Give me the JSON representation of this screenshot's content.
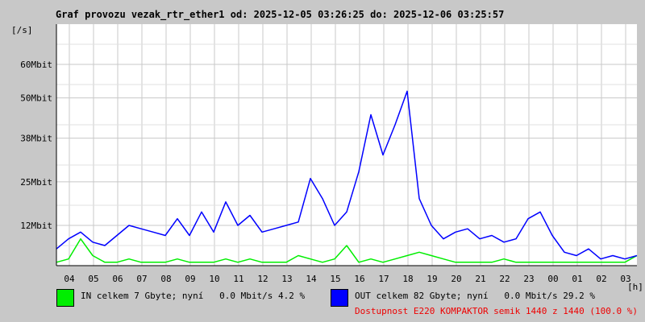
{
  "title": "Graf provozu vezak_rtr_ether1 od: 2025-12-05 03:26:25 do: 2025-12-06 03:25:57",
  "unit_label": "[/s]",
  "colors": {
    "background": "#c8c8c8",
    "plot": "#ffffff",
    "grid": "#c8c8c8",
    "in": "#00ee00",
    "out": "#0000ff",
    "availability": "#ee0000"
  },
  "legend": {
    "in": "IN celkem 7 Gbyte; nyní   0.0 Mbit/s 4.2 %",
    "out": "OUT celkem 82 Gbyte; nyní   0.0 Mbit/s 29.2 %",
    "availability": "Dostupnost E220 KOMPAKTOR semik 1440 z 1440 (100.0 %)"
  },
  "chart_data": {
    "type": "line",
    "ylabel": "[/s]",
    "xunit": "[h]",
    "grid": true,
    "y_ticks": [
      {
        "value": 12,
        "label": "12Mbit"
      },
      {
        "value": 25,
        "label": "25Mbit"
      },
      {
        "value": 38,
        "label": "38Mbit"
      },
      {
        "value": 50,
        "label": "50Mbit"
      },
      {
        "value": 60,
        "label": "60Mbit"
      }
    ],
    "ylim": [
      0,
      72
    ],
    "x_ticks": [
      "04",
      "05",
      "06",
      "07",
      "08",
      "09",
      "10",
      "11",
      "12",
      "13",
      "14",
      "15",
      "16",
      "17",
      "18",
      "19",
      "20",
      "21",
      "22",
      "23",
      "00",
      "01",
      "02",
      "03"
    ],
    "x": [
      "03:30",
      "04:00",
      "04:30",
      "05:00",
      "05:30",
      "06:00",
      "06:30",
      "07:00",
      "07:30",
      "08:00",
      "08:30",
      "09:00",
      "09:30",
      "10:00",
      "10:30",
      "11:00",
      "11:30",
      "12:00",
      "12:30",
      "13:00",
      "13:30",
      "14:00",
      "14:30",
      "15:00",
      "15:30",
      "16:00",
      "16:30",
      "17:00",
      "17:30",
      "18:00",
      "18:30",
      "19:00",
      "19:30",
      "20:00",
      "20:30",
      "21:00",
      "21:30",
      "22:00",
      "22:30",
      "23:00",
      "23:30",
      "00:00",
      "00:30",
      "01:00",
      "01:30",
      "02:00",
      "02:30",
      "03:00",
      "03:25"
    ],
    "series": [
      {
        "name": "IN",
        "color": "#00ee00",
        "values": [
          1,
          2,
          8,
          3,
          1,
          1,
          2,
          1,
          1,
          1,
          2,
          1,
          1,
          1,
          2,
          1,
          2,
          1,
          1,
          1,
          3,
          2,
          1,
          2,
          6,
          1,
          2,
          1,
          2,
          3,
          4,
          3,
          2,
          1,
          1,
          1,
          1,
          2,
          1,
          1,
          1,
          1,
          1,
          1,
          1,
          1,
          1,
          1,
          3
        ]
      },
      {
        "name": "OUT",
        "color": "#0000ff",
        "values": [
          5,
          8,
          10,
          7,
          6,
          9,
          12,
          11,
          10,
          9,
          14,
          9,
          16,
          10,
          19,
          12,
          15,
          10,
          11,
          12,
          13,
          26,
          20,
          12,
          16,
          28,
          45,
          33,
          42,
          52,
          20,
          12,
          8,
          10,
          11,
          8,
          9,
          7,
          8,
          14,
          16,
          9,
          4,
          3,
          5,
          2,
          3,
          2,
          3
        ]
      }
    ]
  }
}
